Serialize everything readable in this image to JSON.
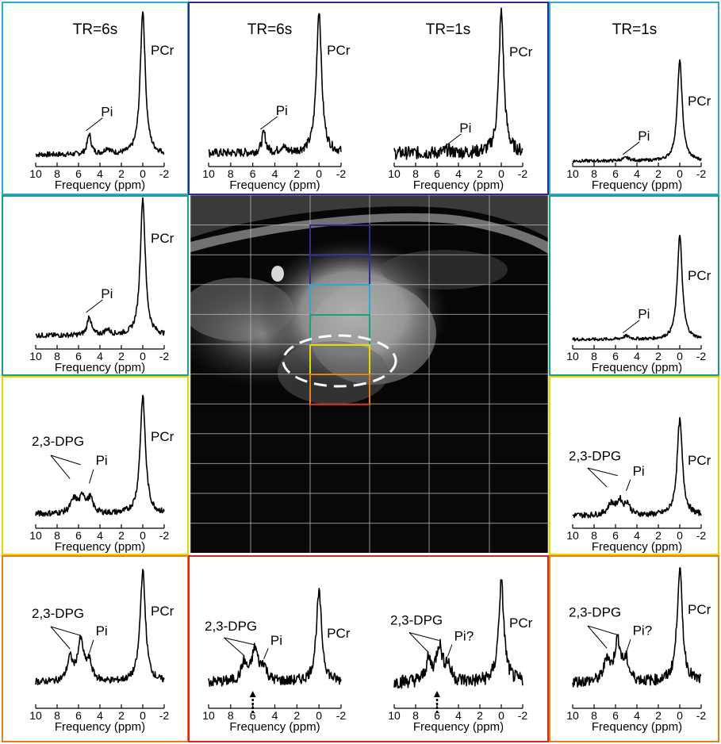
{
  "colors": {
    "cyan": "#2ea6d6",
    "navy": "#2e2e8c",
    "green": "#18a083",
    "yellow": "#e8d800",
    "orange": "#e8801a",
    "red": "#d6281e",
    "teal": "#0e9a8e"
  },
  "common": {
    "xlabel": "Frequency (ppm)",
    "ticks": [
      "10",
      "8",
      "6",
      "4",
      "2",
      "0",
      "-2"
    ]
  },
  "panels": [
    {
      "id": "p1",
      "tr": "TR=6s",
      "pcr": "PCr",
      "pi": "Pi",
      "dpg": "",
      "shape": "pi_small",
      "noise": 0.018
    },
    {
      "id": "p2",
      "tr": "TR=6s",
      "pcr": "PCr",
      "pi": "Pi",
      "dpg": "",
      "shape": "pi_small",
      "noise": 0.03
    },
    {
      "id": "p3",
      "tr": "TR=1s",
      "pcr": "PCr",
      "pi": "Pi",
      "dpg": "",
      "shape": "flat",
      "noise": 0.045
    },
    {
      "id": "p4",
      "tr": "TR=1s",
      "pcr": "PCr",
      "pi": "Pi",
      "dpg": "",
      "shape": "flat_short",
      "noise": 0.015
    },
    {
      "id": "p5",
      "tr": "",
      "pcr": "PCr",
      "pi": "Pi",
      "dpg": "",
      "shape": "pi_small",
      "noise": 0.018
    },
    {
      "id": "p6",
      "tr": "",
      "pcr": "PCr",
      "pi": "Pi",
      "dpg": "",
      "shape": "flat_short",
      "noise": 0.015
    },
    {
      "id": "p7",
      "tr": "",
      "pcr": "PCr",
      "pi": "Pi",
      "dpg": "2,3-DPG",
      "shape": "dpg_med",
      "noise": 0.025
    },
    {
      "id": "p8",
      "tr": "",
      "pcr": "PCr",
      "pi": "Pi",
      "dpg": "2,3-DPG",
      "shape": "dpg_med",
      "noise": 0.03
    },
    {
      "id": "p9",
      "tr": "",
      "pcr": "PCr",
      "pi": "Pi",
      "dpg": "2,3-DPG",
      "shape": "dpg_big",
      "noise": 0.03
    },
    {
      "id": "p10",
      "tr": "",
      "pcr": "PCr",
      "pi": "Pi",
      "dpg": "2,3-DPG",
      "shape": "dpg_big",
      "noise": 0.06
    },
    {
      "id": "p11",
      "tr": "",
      "pcr": "PCr",
      "pi": "Pi?",
      "dpg": "2,3-DPG",
      "shape": "dpg_big",
      "noise": 0.07
    },
    {
      "id": "p12",
      "tr": "",
      "pcr": "PCr",
      "pi": "Pi?",
      "dpg": "2,3-DPG",
      "shape": "dpg_big",
      "noise": 0.05
    }
  ]
}
